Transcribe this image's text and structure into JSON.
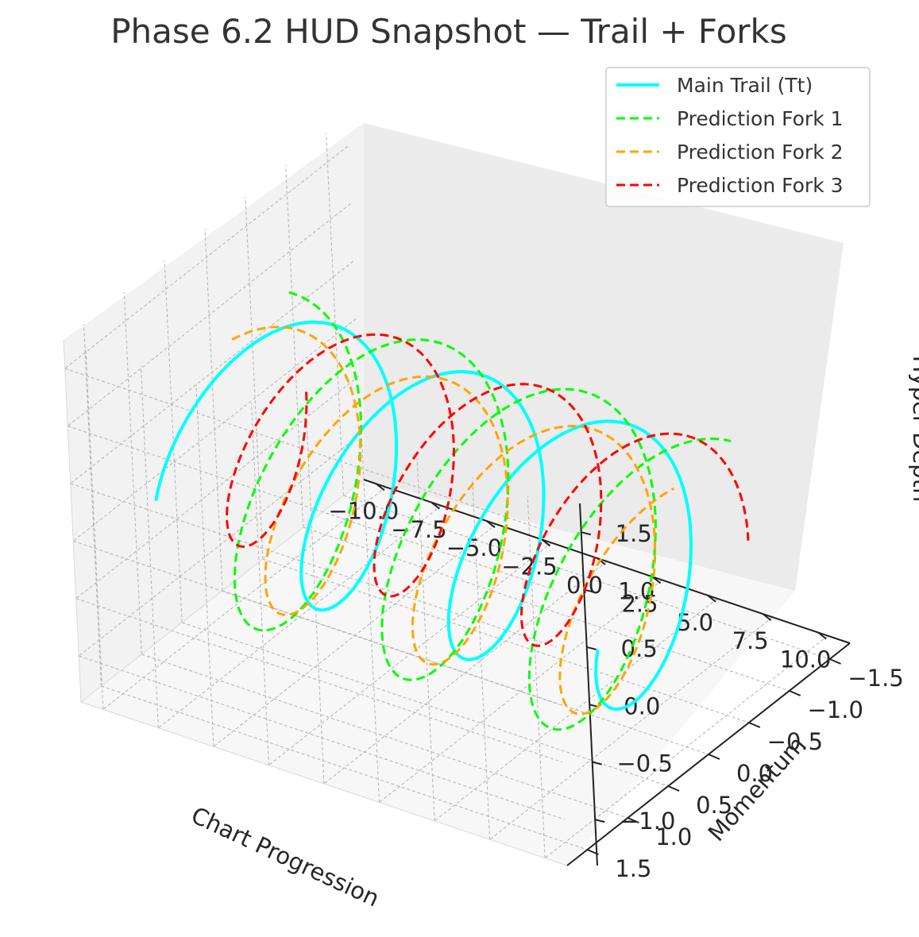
{
  "chart_data": {
    "type": "line3d",
    "title": "Phase 6.2 HUD Snapshot — Trail + Forks",
    "xlabel": "Chart Progression",
    "ylabel": "Momentum",
    "zlabel": "Hyper Depth",
    "xlim": [
      -11,
      11
    ],
    "ylim": [
      -1.75,
      1.75
    ],
    "zlim": [
      -1.4,
      1.75
    ],
    "x_ticks": [
      -10.0,
      -7.5,
      -5.0,
      -2.5,
      0.0,
      2.5,
      5.0,
      7.5,
      10.0
    ],
    "x_tick_labels": [
      "−10.0",
      "−7.5",
      "−5.0",
      "−2.5",
      "0.0",
      "2.5",
      "5.0",
      "7.5",
      "10.0"
    ],
    "y_ticks": [
      -1.5,
      -1.0,
      -0.5,
      0.0,
      0.5,
      1.0,
      1.5
    ],
    "y_tick_labels": [
      "−1.5",
      "−1.0",
      "−0.5",
      "0.0",
      "0.5",
      "1.0",
      "1.5"
    ],
    "z_ticks": [
      -1.0,
      -0.5,
      0.0,
      0.5,
      1.0,
      1.5
    ],
    "z_tick_labels": [
      "−1.0",
      "−0.5",
      "0.0",
      "0.5",
      "1.0",
      "1.5"
    ],
    "grid": true,
    "legend_position": "top-right",
    "series": [
      {
        "name": "Main Trail (Tt)",
        "color": "#00ffff",
        "style": "solid",
        "x_range": [
          -10,
          10
        ],
        "turns": 3,
        "amplitude": 1.0,
        "phase": 0.0,
        "z_offset": 0.0
      },
      {
        "name": "Prediction Fork 1",
        "color": "#00ff00",
        "style": "dashed",
        "x_range": [
          -10,
          10
        ],
        "turns": 3,
        "amplitude": 1.2,
        "phase": 0.35,
        "z_offset": -0.1
      },
      {
        "name": "Prediction Fork 2",
        "color": "#ffa500",
        "style": "dashed",
        "x_range": [
          -10,
          10
        ],
        "turns": 3,
        "amplitude": 1.0,
        "phase": 0.25,
        "z_offset": -0.15
      },
      {
        "name": "Prediction Fork 3",
        "color": "#ff0000",
        "style": "dashed",
        "x_range": [
          -10,
          10
        ],
        "turns": 3,
        "amplitude": 0.9,
        "phase": 0.55,
        "z_offset": 0.2
      }
    ]
  }
}
